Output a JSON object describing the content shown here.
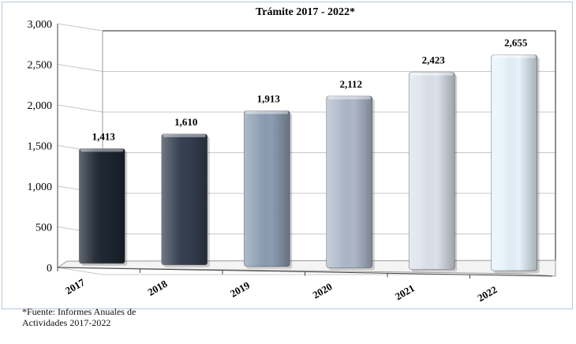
{
  "chart_data": {
    "type": "bar",
    "title": "Trámite 2017 - 2022*",
    "categories": [
      "2017",
      "2018",
      "2019",
      "2020",
      "2021",
      "2022"
    ],
    "values": [
      1413,
      1610,
      1913,
      2112,
      2423,
      2655
    ],
    "data_labels": [
      "1,413",
      "1,610",
      "1,913",
      "2,112",
      "2,423",
      "2,655"
    ],
    "ylim": [
      0,
      3000
    ],
    "yticks": [
      0,
      500,
      1000,
      1500,
      2000,
      2500,
      3000
    ],
    "ytick_labels": [
      "0",
      "500",
      "1,000",
      "1,500",
      "2,000",
      "2,500",
      "3,000"
    ],
    "bar_colors": [
      "#1e2631",
      "#333e4f",
      "#8c9db2",
      "#aeb8c9",
      "#dde3ec",
      "#e6f3fb"
    ],
    "grid": true,
    "legend": "none"
  },
  "footnote": "*Fuente: Informes Anuales de Actividades 2017-2022"
}
